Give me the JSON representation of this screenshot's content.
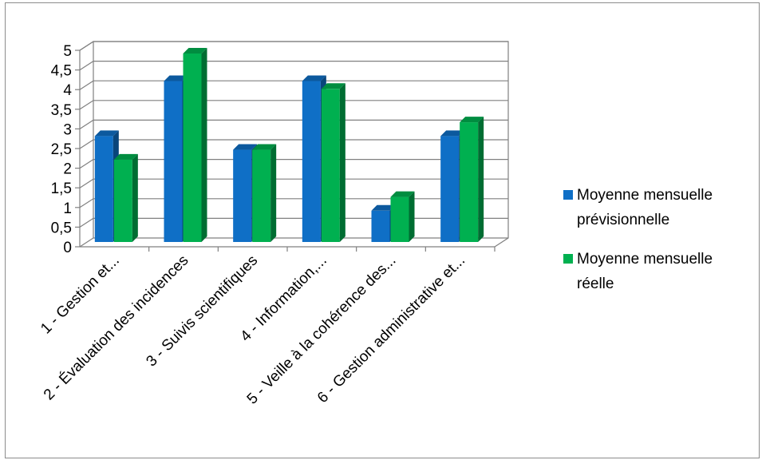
{
  "chart_data": {
    "type": "bar",
    "categories": [
      "1 - Gestion et...",
      "2 - Évaluation des incidences",
      "3 - Suivis scientifiques",
      "4 - Information,...",
      "5 - Veille à la cohérence des...",
      "6 - Gestion administrative et..."
    ],
    "series": [
      {
        "name": "Moyenne mensuelle prévisionnelle",
        "legend_lines": [
          "Moyenne mensuelle",
          "prévisionnelle"
        ],
        "color": "#0f6fc6",
        "values": [
          2.9,
          4.3,
          2.55,
          4.3,
          1.0,
          2.9
        ]
      },
      {
        "name": "Moyenne mensuelle réelle",
        "legend_lines": [
          "Moyenne mensuelle",
          "réelle"
        ],
        "color": "#00b050",
        "values": [
          2.3,
          5.0,
          2.55,
          4.1,
          1.35,
          3.25
        ]
      }
    ],
    "yticks": [
      "0",
      "0,5",
      "1",
      "1,5",
      "2",
      "2,5",
      "3",
      "3,5",
      "4",
      "4,5",
      "5"
    ],
    "ylim": [
      0,
      5
    ],
    "grid": true,
    "legend_position": "right",
    "title": "",
    "xlabel": "",
    "ylabel": ""
  }
}
